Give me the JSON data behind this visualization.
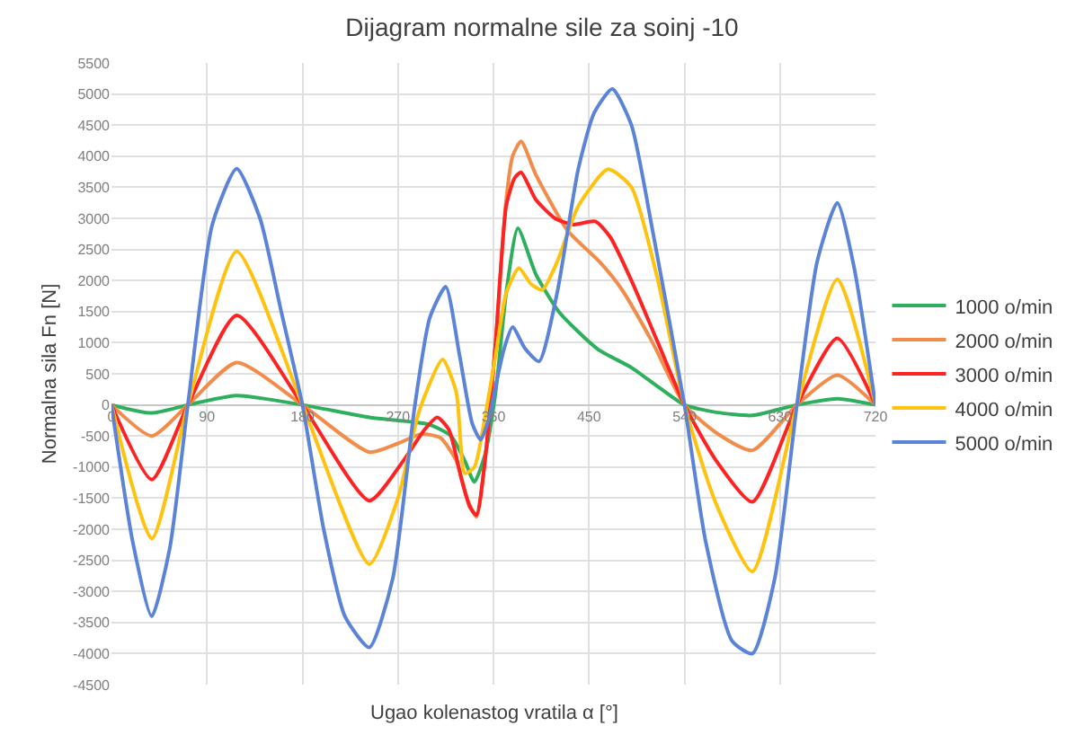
{
  "chart_data": {
    "type": "line",
    "title": "Dijagram normalne sile za soinj -10",
    "xlabel": "Ugao kolenastog vratila α [°]",
    "ylabel": "Normalna sila Fn [N]",
    "xlim": [
      0,
      720
    ],
    "xticks": [
      0,
      90,
      180,
      270,
      360,
      450,
      540,
      630,
      720
    ],
    "ylim": [
      -4500,
      5500
    ],
    "yticks": [
      -4500,
      -4000,
      -3500,
      -3000,
      -2500,
      -2000,
      -1500,
      -1000,
      -500,
      0,
      500,
      1000,
      1500,
      2000,
      2500,
      3000,
      3500,
      4000,
      4500,
      5000,
      5500
    ],
    "grid": true,
    "legend": "right",
    "marker": "none",
    "line_style": "solid",
    "series": [
      {
        "name": "1000 o/min",
        "color": "#2eaf5e",
        "x": [
          0,
          38,
          72,
          118,
          180,
          243,
          270,
          300,
          320,
          333,
          342,
          352,
          362,
          372,
          383,
          400,
          422,
          458,
          490,
          516,
          540,
          570,
          604,
          646,
          684,
          720
        ],
        "values": [
          0,
          -130,
          0,
          150,
          0,
          -200,
          -250,
          -320,
          -500,
          -900,
          -1240,
          -800,
          200,
          1800,
          2840,
          2100,
          1490,
          900,
          600,
          280,
          0,
          -120,
          -170,
          0,
          100,
          0
        ]
      },
      {
        "name": "2000 o/min",
        "color": "#f28c4a",
        "x": [
          0,
          38,
          72,
          118,
          180,
          243,
          270,
          292,
          310,
          325,
          335,
          344,
          352,
          362,
          372,
          378,
          386,
          400,
          430,
          460,
          480,
          510,
          540,
          570,
          604,
          646,
          684,
          720
        ],
        "values": [
          0,
          -500,
          0,
          680,
          0,
          -760,
          -620,
          -470,
          -530,
          -900,
          -1500,
          -1800,
          -900,
          1000,
          3300,
          4000,
          4240,
          3700,
          2800,
          2300,
          1880,
          1000,
          0,
          -450,
          -730,
          0,
          480,
          0
        ]
      },
      {
        "name": "3000 o/min",
        "color": "#ff2222",
        "x": [
          0,
          38,
          72,
          118,
          180,
          243,
          275,
          295,
          307,
          318,
          330,
          338,
          344,
          352,
          362,
          372,
          380,
          386,
          400,
          418,
          435,
          456,
          470,
          490,
          515,
          540,
          570,
          604,
          646,
          684,
          720
        ],
        "values": [
          0,
          -1200,
          0,
          1440,
          0,
          -1540,
          -900,
          -400,
          -200,
          -400,
          -1200,
          -1650,
          -1770,
          -900,
          1000,
          3200,
          3650,
          3740,
          3300,
          3000,
          2900,
          2950,
          2700,
          2000,
          1000,
          0,
          -900,
          -1560,
          0,
          1070,
          0
        ]
      },
      {
        "name": "4000 o/min",
        "color": "#ffc20e",
        "x": [
          0,
          38,
          72,
          118,
          180,
          243,
          270,
          290,
          312,
          325,
          333,
          342,
          352,
          362,
          372,
          384,
          395,
          406,
          420,
          440,
          468,
          490,
          515,
          540,
          570,
          604,
          646,
          684,
          720
        ],
        "values": [
          0,
          -2150,
          0,
          2470,
          0,
          -2560,
          -1500,
          -100,
          730,
          200,
          -1100,
          -1000,
          -200,
          800,
          1800,
          2200,
          1950,
          1850,
          2300,
          3200,
          3790,
          3500,
          2000,
          0,
          -1600,
          -2680,
          0,
          2020,
          0
        ]
      },
      {
        "name": "5000 o/min",
        "color": "#5b84d8",
        "x": [
          0,
          20,
          38,
          55,
          72,
          95,
          118,
          140,
          160,
          180,
          200,
          220,
          243,
          265,
          286,
          300,
          315,
          328,
          340,
          348,
          356,
          362,
          370,
          378,
          390,
          403,
          420,
          440,
          455,
          472,
          490,
          510,
          540,
          560,
          585,
          604,
          625,
          646,
          665,
          684,
          700,
          720
        ],
        "values": [
          0,
          -2200,
          -3400,
          -2300,
          0,
          2900,
          3800,
          3000,
          1500,
          0,
          -2000,
          -3400,
          -3900,
          -2800,
          0,
          1400,
          1900,
          800,
          -300,
          -560,
          -200,
          300,
          900,
          1250,
          900,
          700,
          1800,
          3800,
          4700,
          5080,
          4500,
          2800,
          0,
          -2200,
          -3800,
          -4000,
          -2800,
          0,
          2300,
          3250,
          2200,
          0
        ]
      }
    ]
  }
}
